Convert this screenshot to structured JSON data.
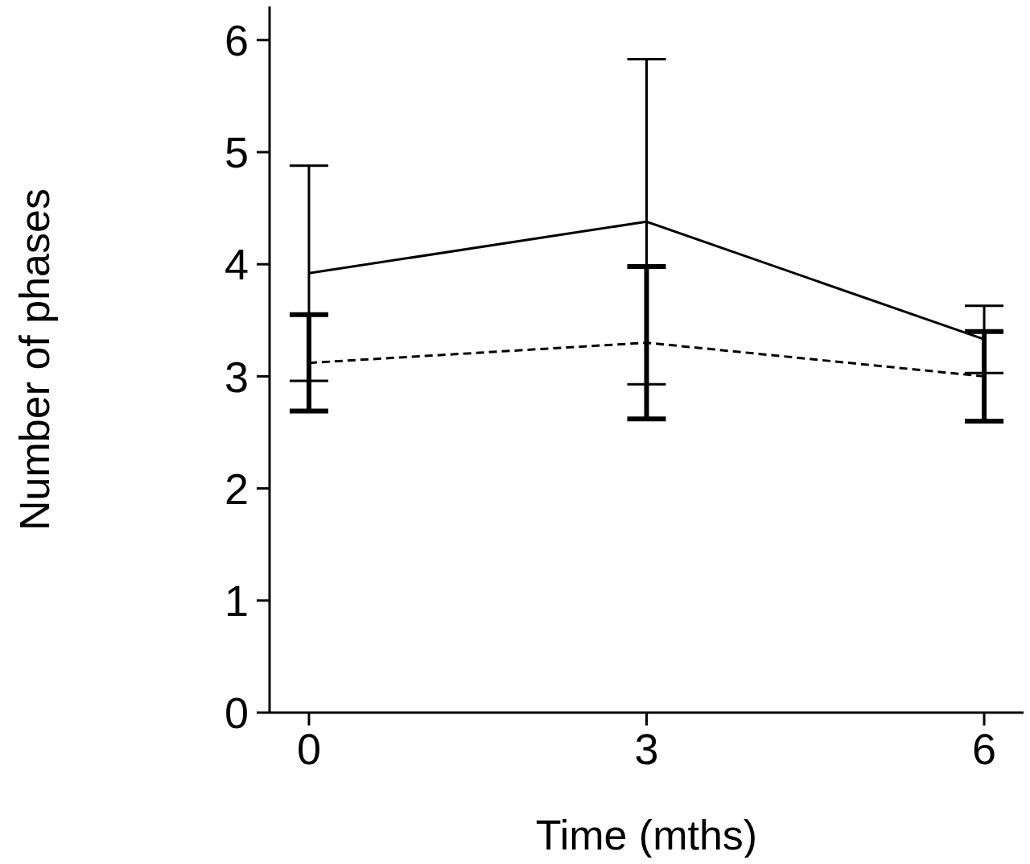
{
  "chart_data": {
    "type": "line",
    "x_label": "Time (mths)",
    "y_label": "Number of phases",
    "x": [
      0,
      3,
      6
    ],
    "xlim": [
      -0.35,
      6.35
    ],
    "xticks": [
      0,
      3,
      6
    ],
    "ylim": [
      0,
      6.3
    ],
    "yticks": [
      0,
      1,
      2,
      3,
      4,
      5,
      6
    ],
    "grid": false,
    "series": [
      {
        "color": "#000000",
        "line_style": "solid",
        "values": [
          3.92,
          4.38,
          3.33
        ],
        "error": [
          0.96,
          1.45,
          0.3
        ]
      },
      {
        "color": "#000000",
        "line_style": "dashed",
        "values": [
          3.12,
          3.3,
          3.0
        ],
        "error": [
          0.43,
          0.68,
          0.4
        ]
      }
    ]
  }
}
